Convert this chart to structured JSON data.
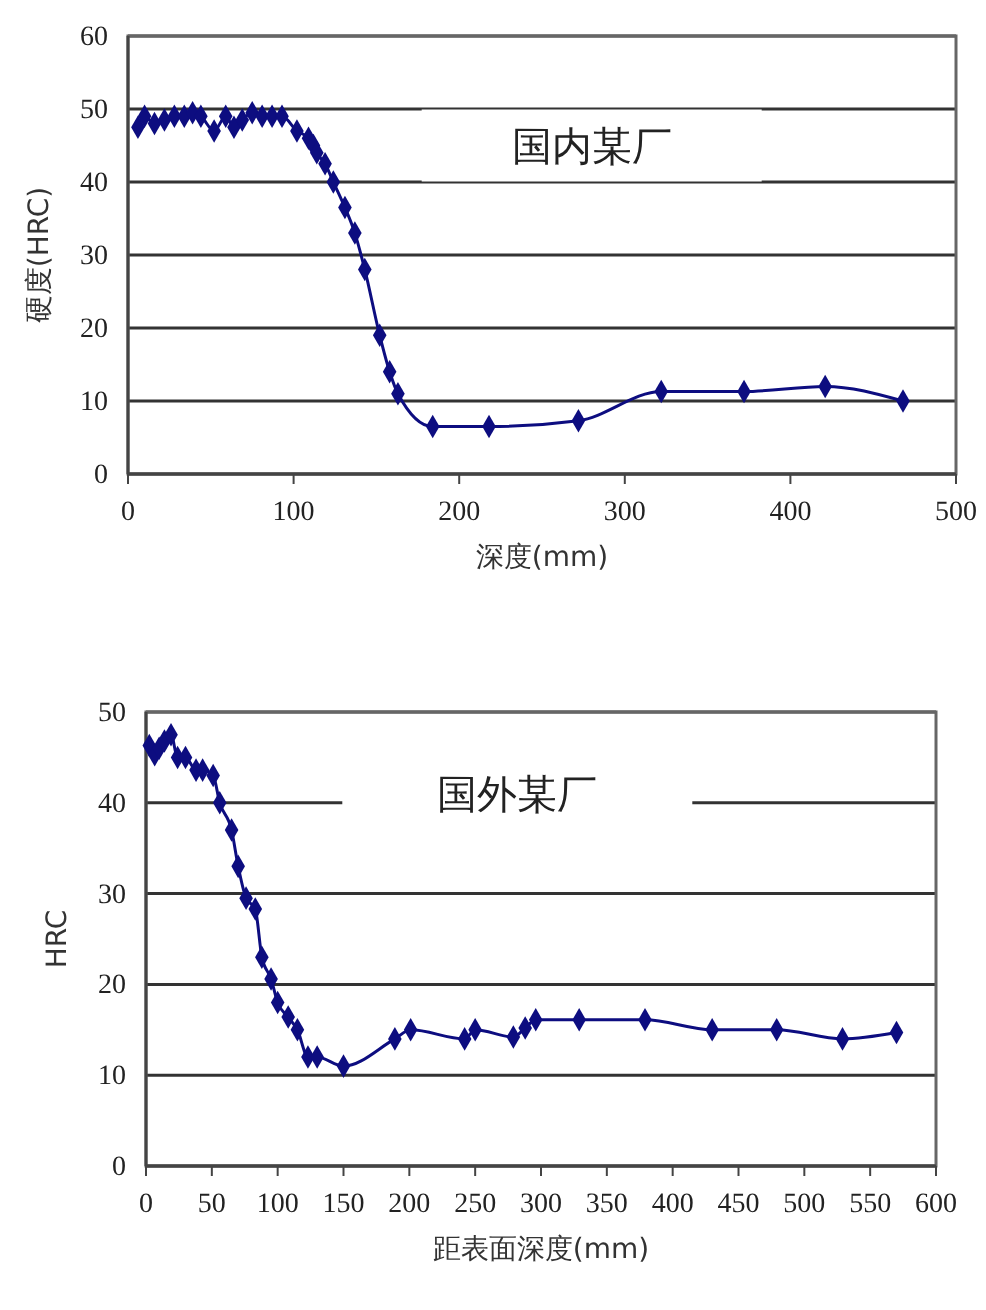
{
  "chart_data": [
    {
      "type": "line",
      "xlabel": "深度(mm)",
      "ylabel": "硬度(HRC)",
      "annotations": [
        "国内某厂"
      ],
      "xlim": [
        0,
        500
      ],
      "xticks": [
        0,
        100,
        200,
        300,
        400,
        500
      ],
      "ylim": [
        0,
        60
      ],
      "yticks": [
        0,
        10,
        20,
        30,
        40,
        50,
        60
      ],
      "grid": "y",
      "marker": "diamond",
      "line_style": "solid",
      "x": [
        6,
        10,
        16,
        22,
        28,
        34,
        39,
        44,
        52,
        59,
        64,
        69,
        75,
        81,
        87,
        93,
        102,
        109,
        112,
        114,
        119,
        124,
        131,
        137,
        143,
        152,
        158,
        163,
        184,
        218,
        272,
        322,
        372,
        421,
        468
      ],
      "series": [
        {
          "color": "#0d0d80",
          "values": [
            47.5,
            49,
            48,
            48.5,
            49,
            49,
            49.5,
            49,
            47,
            49,
            47.5,
            48.5,
            49.5,
            49,
            49,
            49,
            47,
            46,
            45,
            44,
            42.5,
            40,
            36.5,
            33,
            28,
            19,
            14,
            11,
            6.5,
            6.5,
            7.3,
            11.3,
            11.3,
            12,
            10
          ]
        }
      ]
    },
    {
      "type": "line",
      "xlabel": "距表面深度(mm)",
      "ylabel": "HRC",
      "annotations": [
        "国外某厂"
      ],
      "xlim": [
        0,
        600
      ],
      "xticks": [
        0,
        50,
        100,
        150,
        200,
        250,
        300,
        350,
        400,
        450,
        500,
        550,
        600
      ],
      "ylim": [
        0,
        50
      ],
      "yticks": [
        0,
        10,
        20,
        30,
        40,
        50
      ],
      "grid": "y",
      "marker": "diamond",
      "line_style": "solid",
      "x": [
        2.5,
        6.6,
        10,
        14,
        19,
        24,
        30,
        38,
        43,
        51,
        56,
        65,
        70,
        76,
        83,
        88,
        95,
        100,
        108,
        115,
        123,
        130,
        150,
        189,
        201,
        242,
        250,
        279,
        288,
        296,
        329,
        379,
        430,
        479,
        529,
        570
      ],
      "series": [
        {
          "color": "#0d0d80",
          "values": [
            46.3,
            45.3,
            46,
            46.8,
            47.5,
            45,
            45,
            43.6,
            43.6,
            43,
            40,
            37,
            33,
            29.5,
            28.3,
            23,
            20.6,
            18,
            16.4,
            15,
            12,
            12,
            11,
            14,
            15,
            14,
            15,
            14.2,
            15.2,
            16.1,
            16.1,
            16.1,
            15,
            15,
            14,
            14.7
          ]
        }
      ]
    }
  ]
}
